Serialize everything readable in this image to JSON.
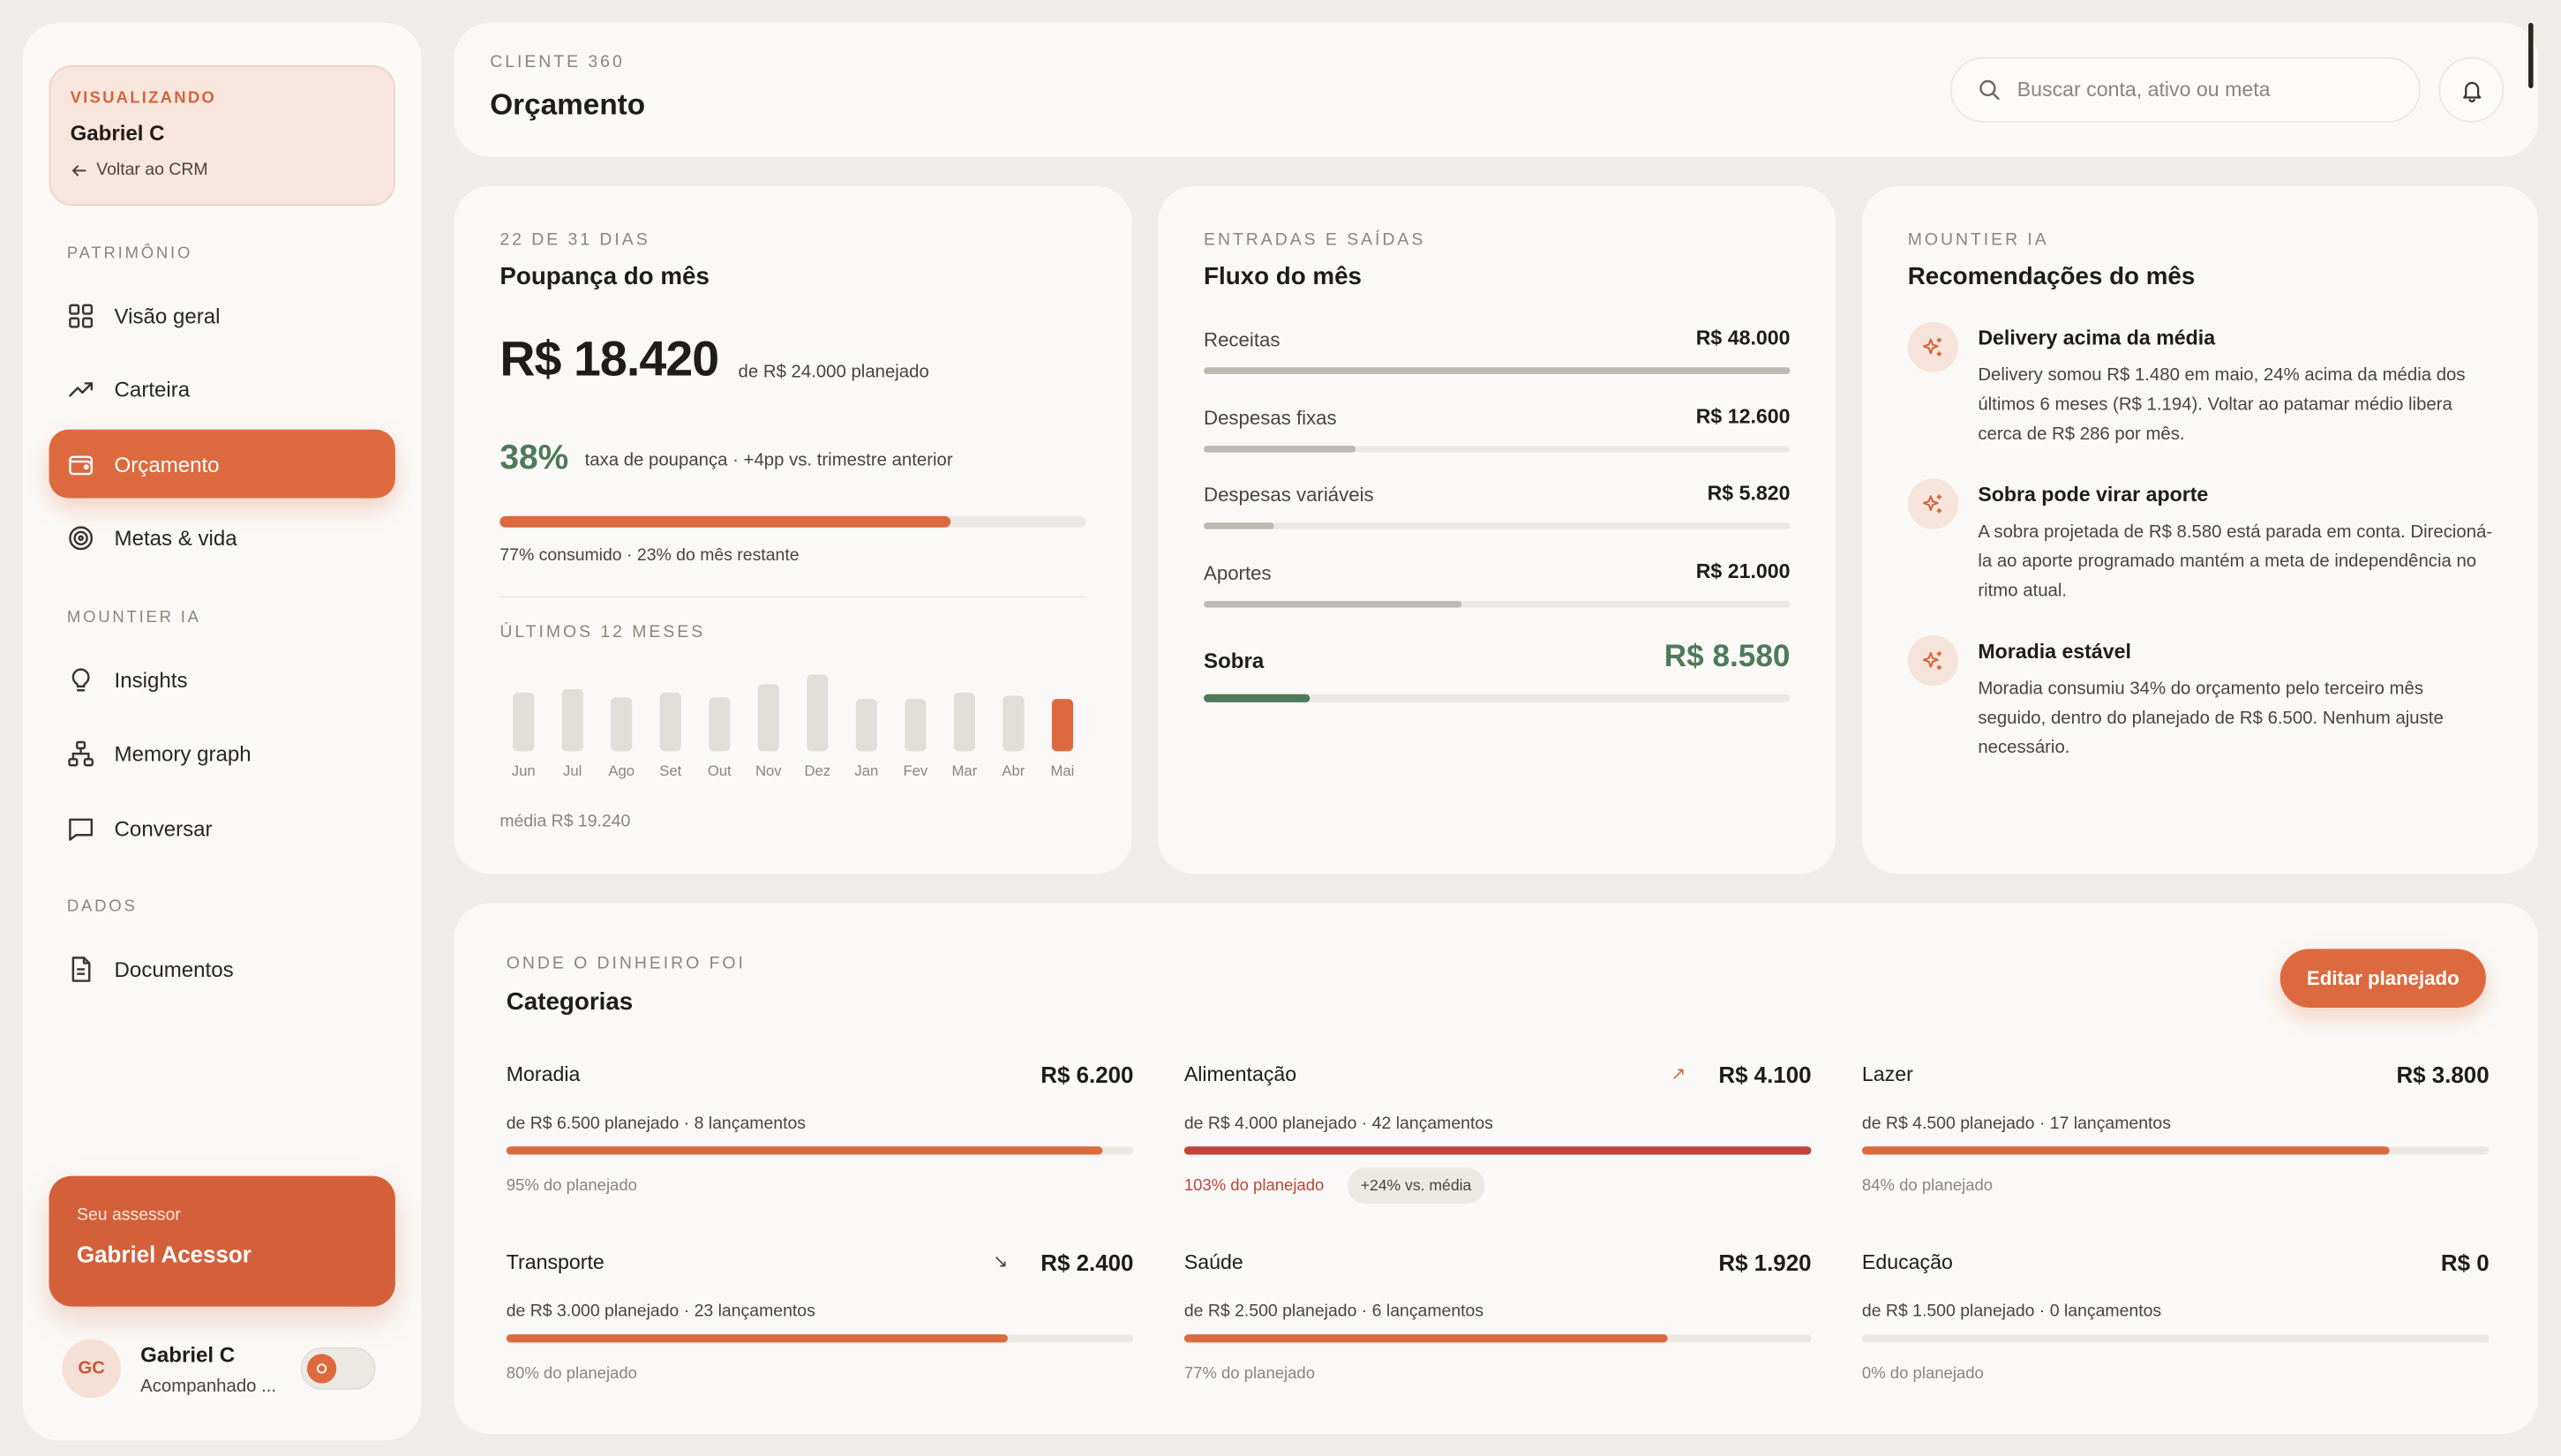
{
  "sidebar": {
    "viewing": {
      "label": "VISUALIZANDO",
      "name": "Gabriel C",
      "back": "Voltar ao CRM"
    },
    "sections": {
      "patrimonio": "PATRIMÔNIO",
      "mountier": "MOUNTIER IA",
      "dados": "DADOS"
    },
    "items": {
      "visao_geral": "Visão geral",
      "carteira": "Carteira",
      "orcamento": "Orçamento",
      "metas": "Metas & vida",
      "insights": "Insights",
      "memory": "Memory graph",
      "conversar": "Conversar",
      "documentos": "Documentos"
    },
    "advisor": {
      "label": "Seu assessor",
      "name": "Gabriel Acessor"
    },
    "user": {
      "initials": "GC",
      "name": "Gabriel C",
      "status": "Acompanhado ..."
    }
  },
  "header": {
    "eyebrow": "CLIENTE 360",
    "title": "Orçamento",
    "search_placeholder": "Buscar conta, ativo ou meta"
  },
  "poupanca": {
    "eyebrow": "22 DE 31 DIAS",
    "title": "Poupança do mês",
    "amount": "R$ 18.420",
    "planned": "de R$ 24.000 planejado",
    "rate": "38%",
    "rate_text": "taxa de poupança · +4pp vs. trimestre anterior",
    "consumed_fraction": 0.77,
    "consumed_text": "77% consumido · 23% do mês restante",
    "months_label": "ÚLTIMOS 12 MESES",
    "average": "média R$ 19.240",
    "months": [
      "Jun",
      "Jul",
      "Ago",
      "Set",
      "Out",
      "Nov",
      "Dez",
      "Jan",
      "Fev",
      "Mar",
      "Abr",
      "Mai"
    ],
    "month_values": [
      0.69,
      0.74,
      0.63,
      0.69,
      0.63,
      0.79,
      0.9,
      0.61,
      0.61,
      0.69,
      0.66,
      0.61
    ]
  },
  "fluxo": {
    "eyebrow": "ENTRADAS E SAÍDAS",
    "title": "Fluxo do mês",
    "rows": [
      {
        "label": "Receitas",
        "value": "R$ 48.000",
        "fraction": 1.0
      },
      {
        "label": "Despesas fixas",
        "value": "R$ 12.600",
        "fraction": 0.26
      },
      {
        "label": "Despesas variáveis",
        "value": "R$ 5.820",
        "fraction": 0.12
      },
      {
        "label": "Aportes",
        "value": "R$ 21.000",
        "fraction": 0.44
      }
    ],
    "sobra": {
      "label": "Sobra",
      "value": "R$ 8.580",
      "fraction": 0.18
    }
  },
  "recomendacoes": {
    "eyebrow": "MOUNTIER IA",
    "title": "Recomendações do mês",
    "items": [
      {
        "title": "Delivery acima da média",
        "body": "Delivery somou R$ 1.480 em maio, 24% acima da média dos últimos 6 meses (R$ 1.194). Voltar ao patamar médio libera cerca de R$ 286 por mês."
      },
      {
        "title": "Sobra pode virar aporte",
        "body": "A sobra projetada de R$ 8.580 está parada em conta. Direcioná-la ao aporte programado mantém a meta de independência no ritmo atual."
      },
      {
        "title": "Moradia estável",
        "body": "Moradia consumiu 34% do orçamento pelo terceiro mês seguido, dentro do planejado de R$ 6.500. Nenhum ajuste necessário."
      }
    ]
  },
  "categorias": {
    "eyebrow": "ONDE O DINHEIRO FOI",
    "title": "Categorias",
    "edit_button": "Editar planejado",
    "items": [
      {
        "name": "Moradia",
        "value": "R$ 6.200",
        "meta": "de R$ 6.500 planejado · 8 lançamentos",
        "pct": "95% do planejado",
        "fraction": 0.95
      },
      {
        "name": "Alimentação",
        "value": "R$ 4.100",
        "meta": "de R$ 4.000 planejado · 42 lançamentos",
        "pct": "103% do planejado",
        "fraction": 1.0,
        "trend": "↗",
        "chip": "+24% vs. média",
        "over": true
      },
      {
        "name": "Lazer",
        "value": "R$ 3.800",
        "meta": "de R$ 4.500 planejado · 17 lançamentos",
        "pct": "84% do planejado",
        "fraction": 0.84
      },
      {
        "name": "Transporte",
        "value": "R$ 2.400",
        "meta": "de R$ 3.000 planejado · 23 lançamentos",
        "pct": "80% do planejado",
        "fraction": 0.8,
        "trend": "↘"
      },
      {
        "name": "Saúde",
        "value": "R$ 1.920",
        "meta": "de R$ 2.500 planejado · 6 lançamentos",
        "pct": "77% do planejado",
        "fraction": 0.77
      },
      {
        "name": "Educação",
        "value": "R$ 0",
        "meta": "de R$ 1.500 planejado · 0 lançamentos",
        "pct": "0% do planejado",
        "fraction": 0.0
      }
    ]
  },
  "colors": {
    "accent": "#dd6a3e",
    "positive": "#4f7a59",
    "over": "#c0443b",
    "neutral_bar": "#bdb8b2"
  }
}
